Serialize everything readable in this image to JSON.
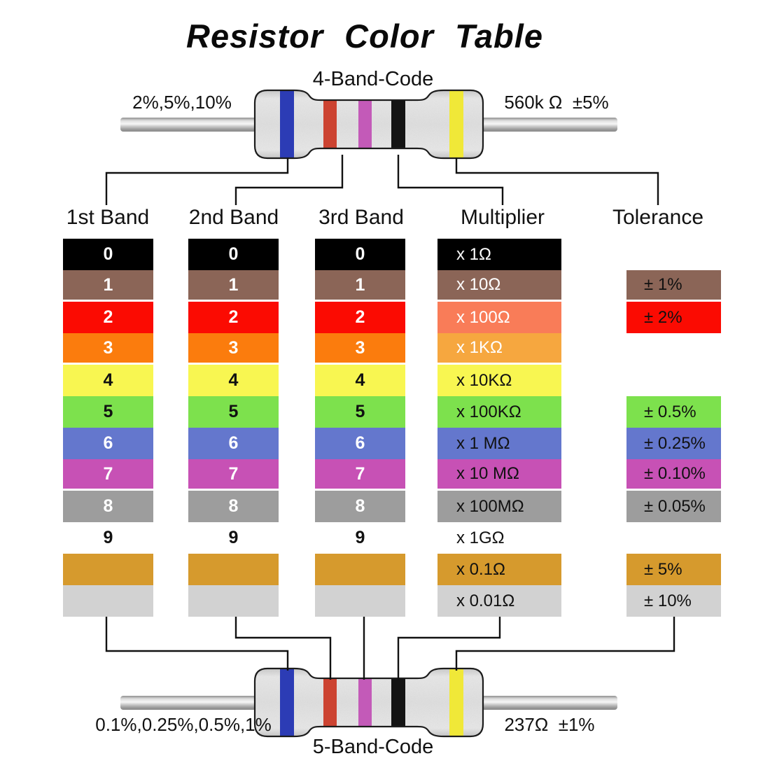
{
  "title": "Resistor Color Table",
  "top_section": {
    "code_label": "4-Band-Code",
    "left_label": "2%,5%,10%",
    "right_label": "560k Ω  ±5%"
  },
  "bottom_section": {
    "code_label": "5-Band-Code",
    "left_label": "0.1%,0.25%,0.5%,1%",
    "right_label": "237Ω  ±1%"
  },
  "headers": [
    "1st Band",
    "2nd Band",
    "3rd Band",
    "Multiplier",
    "Tolerance"
  ],
  "resistor_bands": {
    "band1_blue": "#2c3cb5",
    "band2_red": "#cc4331",
    "band3_violet": "#c35ab8",
    "band4_black": "#141414",
    "band5_yellow": "#f0e838"
  },
  "rows": [
    {
      "name": "black",
      "digit": "0",
      "digit_bg": "#000000",
      "digit_fg": "#ffffff",
      "multiplier": "x 1Ω",
      "mult_bg": "#000000",
      "mult_fg": "#ffffff",
      "tolerance": "",
      "tol_bg": "",
      "tol_fg": "",
      "gap_after": false
    },
    {
      "name": "brown",
      "digit": "1",
      "digit_bg": "#8b6557",
      "digit_fg": "#ffffff",
      "multiplier": "x 10Ω",
      "mult_bg": "#8b6557",
      "mult_fg": "#ffffff",
      "tolerance": "± 1%",
      "tol_bg": "#8b6557",
      "tol_fg": "#111111",
      "gap_after": true
    },
    {
      "name": "red",
      "digit": "2",
      "digit_bg": "#fb0b02",
      "digit_fg": "#ffffff",
      "multiplier": "x 100Ω",
      "mult_bg": "#f97c58",
      "mult_fg": "#ffffff",
      "tolerance": "± 2%",
      "tol_bg": "#fb0b02",
      "tol_fg": "#111111",
      "gap_after": false
    },
    {
      "name": "orange",
      "digit": "3",
      "digit_bg": "#fb7c0d",
      "digit_fg": "#ffffff",
      "multiplier": "x 1KΩ",
      "mult_bg": "#f6a73f",
      "mult_fg": "#ffffff",
      "tolerance": "",
      "tol_bg": "",
      "tol_fg": "",
      "gap_after": true
    },
    {
      "name": "yellow",
      "digit": "4",
      "digit_bg": "#f8f651",
      "digit_fg": "#111111",
      "multiplier": "x 10KΩ",
      "mult_bg": "#f8f651",
      "mult_fg": "#111111",
      "tolerance": "",
      "tol_bg": "",
      "tol_fg": "",
      "gap_after": false
    },
    {
      "name": "green",
      "digit": "5",
      "digit_bg": "#7de14d",
      "digit_fg": "#111111",
      "multiplier": "x 100KΩ",
      "mult_bg": "#7de14d",
      "mult_fg": "#111111",
      "tolerance": "± 0.5%",
      "tol_bg": "#7de14d",
      "tol_fg": "#111111",
      "gap_after": false
    },
    {
      "name": "blue",
      "digit": "6",
      "digit_bg": "#6477cd",
      "digit_fg": "#ffffff",
      "multiplier": "x 1 MΩ",
      "mult_bg": "#6477cd",
      "mult_fg": "#111111",
      "tolerance": "± 0.25%",
      "tol_bg": "#6477cd",
      "tol_fg": "#111111",
      "gap_after": false
    },
    {
      "name": "violet",
      "digit": "7",
      "digit_bg": "#c751b5",
      "digit_fg": "#ffffff",
      "multiplier": "x 10 MΩ",
      "mult_bg": "#c751b5",
      "mult_fg": "#111111",
      "tolerance": "± 0.10%",
      "tol_bg": "#c751b5",
      "tol_fg": "#111111",
      "gap_after": true
    },
    {
      "name": "gray",
      "digit": "8",
      "digit_bg": "#9d9d9d",
      "digit_fg": "#ffffff",
      "multiplier": "x 100MΩ",
      "mult_bg": "#9d9d9d",
      "mult_fg": "#111111",
      "tolerance": "± 0.05%",
      "tol_bg": "#9d9d9d",
      "tol_fg": "#111111",
      "gap_after": false
    },
    {
      "name": "white",
      "digit": "9",
      "digit_bg": "#ffffff",
      "digit_fg": "#111111",
      "multiplier": "x 1GΩ",
      "mult_bg": "#ffffff",
      "mult_fg": "#111111",
      "tolerance": "",
      "tol_bg": "",
      "tol_fg": "",
      "gap_after": false
    },
    {
      "name": "gold",
      "digit": "",
      "digit_bg": "#d69a2d",
      "digit_fg": "#111111",
      "multiplier": "x 0.1Ω",
      "mult_bg": "#d69a2d",
      "mult_fg": "#111111",
      "tolerance": "± 5%",
      "tol_bg": "#d69a2d",
      "tol_fg": "#111111",
      "gap_after": false
    },
    {
      "name": "silver",
      "digit": "",
      "digit_bg": "#d2d2d2",
      "digit_fg": "#111111",
      "multiplier": "x 0.01Ω",
      "mult_bg": "#d2d2d2",
      "mult_fg": "#111111",
      "tolerance": "± 10%",
      "tol_bg": "#d2d2d2",
      "tol_fg": "#111111",
      "gap_after": false
    }
  ]
}
